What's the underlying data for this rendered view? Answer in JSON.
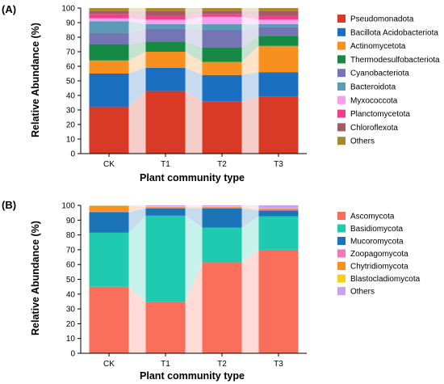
{
  "chart_data": [
    {
      "type": "bar",
      "stacked": true,
      "panel_label": "(A)",
      "xlabel": "Plant community type",
      "ylabel": "Relative Abundance (%)",
      "ylim": [
        0,
        100
      ],
      "yticks": [
        0,
        10,
        20,
        30,
        40,
        50,
        60,
        70,
        80,
        90,
        100
      ],
      "legend_position": "right",
      "categories": [
        "CK",
        "T1",
        "T2",
        "T3"
      ],
      "series": [
        {
          "name": "Pseudomonadota",
          "color": "#d93a25",
          "values": [
            32,
            43,
            36,
            39
          ]
        },
        {
          "name": "Bacillota Acidobacteriota",
          "color": "#1a6fc0",
          "values": [
            23,
            16,
            18,
            17
          ]
        },
        {
          "name": "Actinomycetota",
          "color": "#f7901e",
          "values": [
            9,
            11,
            9,
            18
          ]
        },
        {
          "name": "Thermodesulfobacteriota",
          "color": "#168a44",
          "values": [
            11,
            7,
            10,
            7
          ]
        },
        {
          "name": "Cyanobacteriota",
          "color": "#7574b4",
          "values": [
            8,
            9,
            12,
            6
          ]
        },
        {
          "name": "Bacteroidota",
          "color": "#5a9cb6",
          "values": [
            8,
            3,
            4,
            2
          ]
        },
        {
          "name": "Myxococcota",
          "color": "#f79ef0",
          "values": [
            2,
            3,
            5,
            3
          ]
        },
        {
          "name": "Planctomycetota",
          "color": "#ee3f8a",
          "values": [
            3,
            3,
            2,
            3
          ]
        },
        {
          "name": "Chloroflexota",
          "color": "#a65a64",
          "values": [
            2,
            3,
            2,
            3
          ]
        },
        {
          "name": "Others",
          "color": "#a68b2c",
          "values": [
            2,
            2,
            2,
            2
          ]
        }
      ]
    },
    {
      "type": "bar",
      "stacked": true,
      "panel_label": "(B)",
      "xlabel": "Plant community type",
      "ylabel": "Relative Abundance (%)",
      "ylim": [
        0,
        100
      ],
      "yticks": [
        0,
        10,
        20,
        30,
        40,
        50,
        60,
        70,
        80,
        90,
        100
      ],
      "legend_position": "right",
      "categories": [
        "CK",
        "T1",
        "T2",
        "T3"
      ],
      "series": [
        {
          "name": "Ascomycota",
          "color": "#f96f5b",
          "values": [
            45,
            34.5,
            61.5,
            70
          ]
        },
        {
          "name": "Basidiomycota",
          "color": "#1ecbb0",
          "values": [
            36.5,
            58.5,
            23.5,
            22.5
          ]
        },
        {
          "name": "Mucoromycota",
          "color": "#1b73b8",
          "values": [
            14,
            5,
            13,
            4
          ]
        },
        {
          "name": "Zoopagomycota",
          "color": "#f27ab4",
          "values": [
            0.5,
            0.5,
            0.5,
            1
          ]
        },
        {
          "name": "Chytridiomycota",
          "color": "#f7901e",
          "values": [
            3.5,
            0.5,
            0.5,
            0.5
          ]
        },
        {
          "name": "Blastocladiomycota",
          "color": "#f5d020",
          "values": [
            0.3,
            0.3,
            0.3,
            0.3
          ]
        },
        {
          "name": "Others",
          "color": "#c9a1f2",
          "values": [
            0.2,
            0.7,
            0.7,
            1.7
          ]
        }
      ]
    }
  ]
}
